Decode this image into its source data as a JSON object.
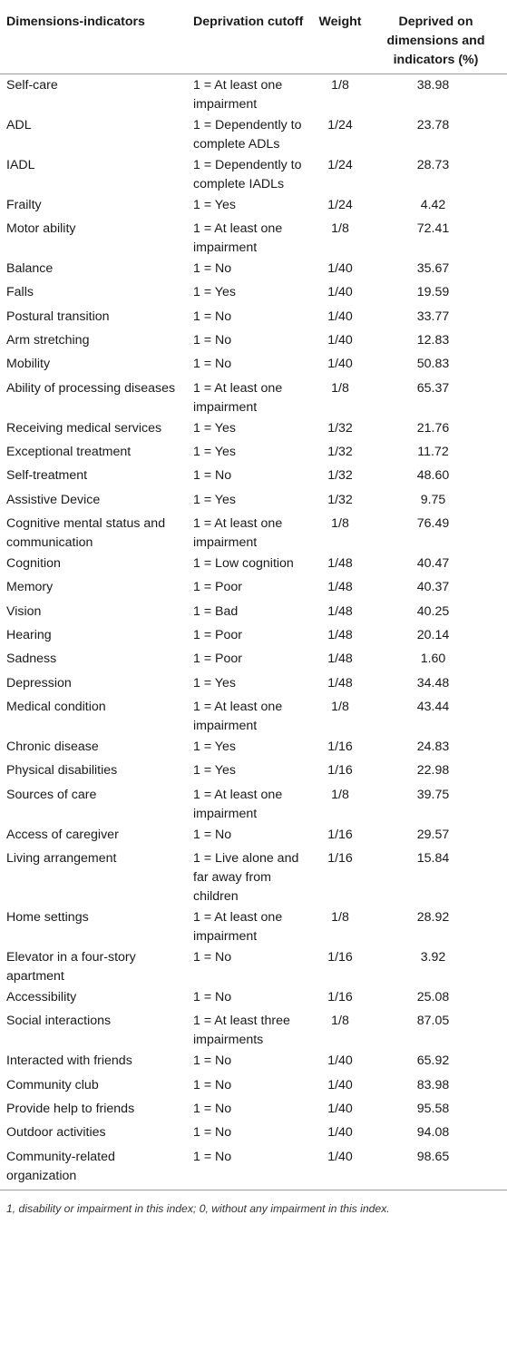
{
  "table": {
    "headers": {
      "indicator": "Dimensions-indicators",
      "cutoff": "Deprivation cutoff",
      "weight": "Weight",
      "deprived": "Deprived on dimensions and indicators (%)"
    },
    "rows": [
      {
        "indicator": "Self-care",
        "cutoff": "1 = At least one impairment",
        "weight": "1/8",
        "pct": "38.98"
      },
      {
        "indicator": "ADL",
        "cutoff": "1 = Dependently to complete ADLs",
        "weight": "1/24",
        "pct": "23.78"
      },
      {
        "indicator": "IADL",
        "cutoff": "1 = Dependently to complete IADLs",
        "weight": "1/24",
        "pct": "28.73"
      },
      {
        "indicator": "Frailty",
        "cutoff": "1 = Yes",
        "weight": "1/24",
        "pct": "4.42"
      },
      {
        "indicator": "Motor ability",
        "cutoff": "1 = At least one impairment",
        "weight": "1/8",
        "pct": "72.41"
      },
      {
        "indicator": "Balance",
        "cutoff": "1 = No",
        "weight": "1/40",
        "pct": "35.67"
      },
      {
        "indicator": "Falls",
        "cutoff": "1 = Yes",
        "weight": "1/40",
        "pct": "19.59"
      },
      {
        "indicator": "Postural transition",
        "cutoff": "1 = No",
        "weight": "1/40",
        "pct": "33.77"
      },
      {
        "indicator": "Arm stretching",
        "cutoff": "1 = No",
        "weight": "1/40",
        "pct": "12.83"
      },
      {
        "indicator": "Mobility",
        "cutoff": "1 = No",
        "weight": "1/40",
        "pct": "50.83"
      },
      {
        "indicator": "Ability of processing diseases",
        "cutoff": "1 = At least one impairment",
        "weight": "1/8",
        "pct": "65.37"
      },
      {
        "indicator": "Receiving medical services",
        "cutoff": "1 = Yes",
        "weight": "1/32",
        "pct": "21.76"
      },
      {
        "indicator": "Exceptional treatment",
        "cutoff": "1 = Yes",
        "weight": "1/32",
        "pct": "11.72"
      },
      {
        "indicator": "Self-treatment",
        "cutoff": "1 = No",
        "weight": "1/32",
        "pct": "48.60"
      },
      {
        "indicator": "Assistive Device",
        "cutoff": "1 = Yes",
        "weight": "1/32",
        "pct": "9.75"
      },
      {
        "indicator": "Cognitive mental status and communication",
        "cutoff": "1 = At least one impairment",
        "weight": "1/8",
        "pct": "76.49"
      },
      {
        "indicator": "Cognition",
        "cutoff": "1 = Low cognition",
        "weight": "1/48",
        "pct": "40.47"
      },
      {
        "indicator": "Memory",
        "cutoff": "1 = Poor",
        "weight": "1/48",
        "pct": "40.37"
      },
      {
        "indicator": "Vision",
        "cutoff": "1 = Bad",
        "weight": "1/48",
        "pct": "40.25"
      },
      {
        "indicator": "Hearing",
        "cutoff": "1 = Poor",
        "weight": "1/48",
        "pct": "20.14"
      },
      {
        "indicator": "Sadness",
        "cutoff": "1 = Poor",
        "weight": "1/48",
        "pct": "1.60"
      },
      {
        "indicator": "Depression",
        "cutoff": "1 = Yes",
        "weight": "1/48",
        "pct": "34.48"
      },
      {
        "indicator": "Medical condition",
        "cutoff": "1 = At least one impairment",
        "weight": "1/8",
        "pct": "43.44"
      },
      {
        "indicator": "Chronic disease",
        "cutoff": "1 = Yes",
        "weight": "1/16",
        "pct": "24.83"
      },
      {
        "indicator": "Physical disabilities",
        "cutoff": "1 = Yes",
        "weight": "1/16",
        "pct": "22.98"
      },
      {
        "indicator": "Sources of care",
        "cutoff": "1 = At least one impairment",
        "weight": "1/8",
        "pct": "39.75"
      },
      {
        "indicator": "Access of caregiver",
        "cutoff": "1 = No",
        "weight": "1/16",
        "pct": "29.57"
      },
      {
        "indicator": "Living arrangement",
        "cutoff": "1 = Live alone and far away from children",
        "weight": "1/16",
        "pct": "15.84"
      },
      {
        "indicator": "Home settings",
        "cutoff": "1 = At least one impairment",
        "weight": "1/8",
        "pct": "28.92"
      },
      {
        "indicator": "Elevator in a four-story apartment",
        "cutoff": "1 = No",
        "weight": "1/16",
        "pct": "3.92"
      },
      {
        "indicator": "Accessibility",
        "cutoff": "1 = No",
        "weight": "1/16",
        "pct": "25.08"
      },
      {
        "indicator": "Social interactions",
        "cutoff": "1 = At least three impairments",
        "weight": "1/8",
        "pct": "87.05"
      },
      {
        "indicator": "Interacted with friends",
        "cutoff": "1 = No",
        "weight": "1/40",
        "pct": "65.92"
      },
      {
        "indicator": "Community club",
        "cutoff": "1 = No",
        "weight": "1/40",
        "pct": "83.98"
      },
      {
        "indicator": "Provide help to friends",
        "cutoff": "1 = No",
        "weight": "1/40",
        "pct": "95.58"
      },
      {
        "indicator": "Outdoor activities",
        "cutoff": "1 = No",
        "weight": "1/40",
        "pct": "94.08"
      },
      {
        "indicator": "Community-related organization",
        "cutoff": "1 = No",
        "weight": "1/40",
        "pct": "98.65"
      }
    ]
  },
  "footnote": "1, disability or impairment in this index; 0, without any impairment in this index."
}
